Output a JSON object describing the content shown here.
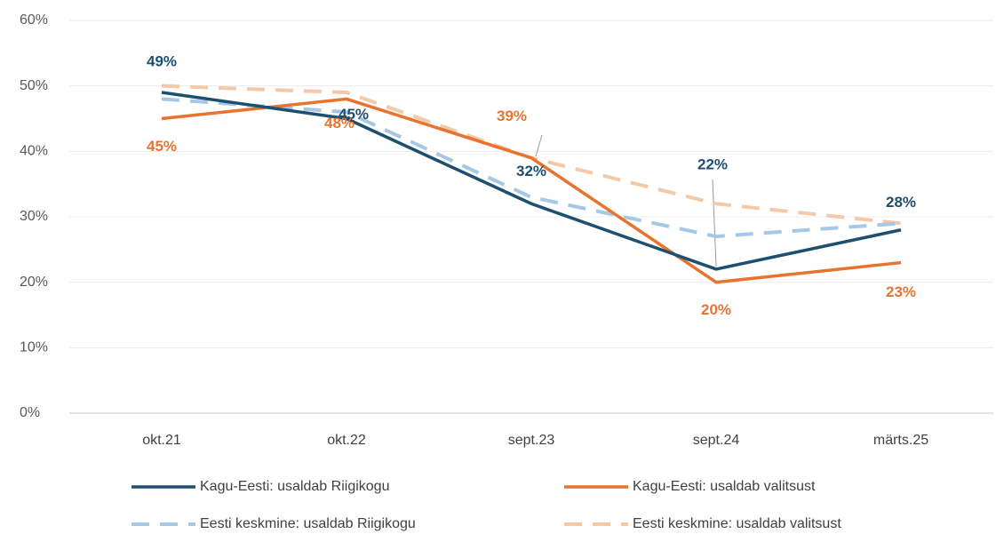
{
  "chart_data": {
    "type": "line",
    "categories": [
      "okt.21",
      "okt.22",
      "sept.23",
      "sept.24",
      "märts.25"
    ],
    "series": [
      {
        "name": "Kagu-Eesti: usaldab Riigikogu",
        "color": "#1d4f6e",
        "dashed": false,
        "values": [
          49,
          45,
          32,
          22,
          28
        ],
        "value_labels": [
          "49%",
          "45%",
          "32%",
          "22%",
          "28%"
        ]
      },
      {
        "name": "Kagu-Eesti: usaldab valitsust",
        "color": "#e8732e",
        "dashed": false,
        "values": [
          45,
          48,
          39,
          20,
          23
        ],
        "value_labels": [
          "45%",
          "48%",
          "39%",
          "20%",
          "23%"
        ]
      },
      {
        "name": "Eesti keskmine: usaldab Riigikogu",
        "color": "#a6c8e6",
        "dashed": true,
        "values": [
          48,
          46,
          33,
          27,
          29
        ]
      },
      {
        "name": "Eesti keskmine: usaldab valitsust",
        "color": "#f5c8a8",
        "dashed": true,
        "values": [
          50,
          49,
          39,
          32,
          29
        ]
      }
    ],
    "ylim": [
      0,
      60
    ],
    "yticks": [
      {
        "value": 0,
        "label": "0%"
      },
      {
        "value": 10,
        "label": "10%"
      },
      {
        "value": 20,
        "label": "20%"
      },
      {
        "value": 30,
        "label": "30%"
      },
      {
        "value": 40,
        "label": "40%"
      },
      {
        "value": 50,
        "label": "50%"
      },
      {
        "value": 60,
        "label": "60%"
      }
    ],
    "grid": true,
    "legend": "bottom"
  }
}
